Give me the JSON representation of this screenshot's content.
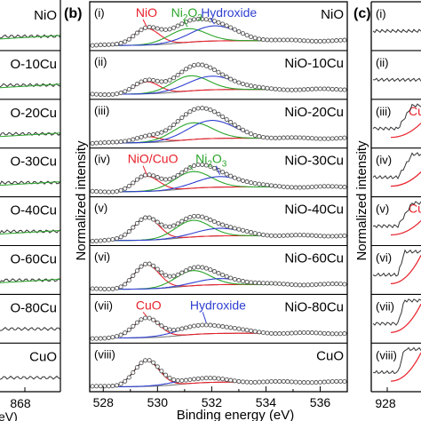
{
  "figure": {
    "left_panel": {
      "tick_labels": [
        "868"
      ],
      "xlabel_fragment": "eV)",
      "rows": [
        {
          "label": "NiO"
        },
        {
          "label": "O-10Cu"
        },
        {
          "label": "O-20Cu"
        },
        {
          "label": "O-30Cu"
        },
        {
          "label": "O-40Cu"
        },
        {
          "label": "O-60Cu"
        },
        {
          "label": "O-80Cu"
        },
        {
          "label": "CuO"
        }
      ]
    },
    "right_panel": {
      "panel_letter": "(c)",
      "ylabel": "Normalized intensity",
      "tick_labels": [
        "928"
      ],
      "rows": [
        {
          "roman": "(i)",
          "annotation": ""
        },
        {
          "roman": "(ii)",
          "annotation": ""
        },
        {
          "roman": "(iii)",
          "annotation": "Cu"
        },
        {
          "roman": "(iv)",
          "annotation": ""
        },
        {
          "roman": "(v)",
          "annotation": "Cu"
        },
        {
          "roman": "(vi)",
          "annotation": ""
        },
        {
          "roman": "(vii)",
          "annotation": ""
        },
        {
          "roman": "(viii)",
          "annotation": ""
        }
      ]
    }
  },
  "chart_data": {
    "type": "line",
    "panel_letter": "(b)",
    "xlabel": "Binding energy (eV)",
    "ylabel": "Normalized intensity",
    "xlim": [
      527.5,
      537
    ],
    "x_ticks": [
      528,
      529,
      530,
      531,
      532,
      533,
      534,
      535,
      536
    ],
    "x_tick_labels": [
      "528",
      "530",
      "532",
      "534",
      "536"
    ],
    "grid": false,
    "colors": {
      "fit_envelope": "#222222",
      "data_points": "#555555",
      "NiO": "#e8202a",
      "CuO": "#e8202a",
      "Ni2O3": "#2aa52a",
      "Hydroxide": "#2f3fd0",
      "background": "#7a7a7a"
    },
    "panels": [
      {
        "roman": "(i)",
        "sample": "NiO",
        "annotations": [
          {
            "text": "NiO",
            "color": "#e8202a"
          },
          {
            "text": "Ni",
            "sub": "2",
            "text2": "O",
            "sub2": "3",
            "color": "#2aa52a"
          },
          {
            "text": "Hydroxide",
            "color": "#2f3fd0"
          }
        ],
        "components": [
          {
            "name": "NiO",
            "center": 529.6,
            "height": 0.55,
            "fwhm": 1.1,
            "color": "#e8202a"
          },
          {
            "name": "Ni2O3",
            "center": 531.1,
            "height": 0.45,
            "fwhm": 1.6,
            "color": "#2aa52a"
          },
          {
            "name": "Hydroxide",
            "center": 532.1,
            "height": 0.5,
            "fwhm": 2.0,
            "color": "#2f3fd0"
          }
        ]
      },
      {
        "roman": "(ii)",
        "sample": "NiO-10Cu",
        "annotations": [],
        "components": [
          {
            "name": "NiO",
            "center": 529.6,
            "height": 0.4,
            "fwhm": 1.1,
            "color": "#e8202a"
          },
          {
            "name": "Ni2O3",
            "center": 531.2,
            "height": 0.5,
            "fwhm": 1.6,
            "color": "#2aa52a"
          },
          {
            "name": "Hydroxide",
            "center": 532.0,
            "height": 0.45,
            "fwhm": 2.0,
            "color": "#2f3fd0"
          }
        ]
      },
      {
        "roman": "(iii)",
        "sample": "NiO-20Cu",
        "annotations": [],
        "components": [
          {
            "name": "NiO",
            "center": 529.6,
            "height": 0.2,
            "fwhm": 1.1,
            "color": "#e8202a"
          },
          {
            "name": "Ni2O3",
            "center": 531.3,
            "height": 0.55,
            "fwhm": 1.7,
            "color": "#2aa52a"
          },
          {
            "name": "Hydroxide",
            "center": 532.0,
            "height": 0.6,
            "fwhm": 2.0,
            "color": "#2f3fd0"
          }
        ]
      },
      {
        "roman": "(iv)",
        "sample": "NiO-30Cu",
        "annotations": [
          {
            "text": "NiO/CuO",
            "color": "#e8202a"
          },
          {
            "text": "Ni",
            "sub": "2",
            "text2": "O",
            "sub2": "3",
            "color": "#2aa52a"
          }
        ],
        "components": [
          {
            "name": "NiO/CuO",
            "center": 529.6,
            "height": 0.5,
            "fwhm": 1.1,
            "color": "#e8202a"
          },
          {
            "name": "Ni2O3",
            "center": 531.3,
            "height": 0.55,
            "fwhm": 1.6,
            "color": "#2aa52a"
          },
          {
            "name": "Hydroxide",
            "center": 532.3,
            "height": 0.35,
            "fwhm": 2.0,
            "color": "#2f3fd0"
          }
        ]
      },
      {
        "roman": "(v)",
        "sample": "NiO-40Cu",
        "annotations": [],
        "components": [
          {
            "name": "NiO/CuO",
            "center": 529.6,
            "height": 0.75,
            "fwhm": 1.1,
            "color": "#e8202a"
          },
          {
            "name": "Ni2O3",
            "center": 531.3,
            "height": 0.55,
            "fwhm": 1.5,
            "color": "#2aa52a"
          },
          {
            "name": "Hydroxide",
            "center": 532.3,
            "height": 0.25,
            "fwhm": 2.0,
            "color": "#2f3fd0"
          }
        ]
      },
      {
        "roman": "(vi)",
        "sample": "NiO-60Cu",
        "annotations": [],
        "components": [
          {
            "name": "NiO/CuO",
            "center": 529.6,
            "height": 0.8,
            "fwhm": 1.1,
            "color": "#e8202a"
          },
          {
            "name": "Ni2O3",
            "center": 531.3,
            "height": 0.5,
            "fwhm": 1.5,
            "color": "#2aa52a"
          },
          {
            "name": "Hydroxide",
            "center": 532.3,
            "height": 0.2,
            "fwhm": 2.0,
            "color": "#2f3fd0"
          }
        ]
      },
      {
        "roman": "(vii)",
        "sample": "NiO-80Cu",
        "annotations": [
          {
            "text": "CuO",
            "color": "#e8202a"
          },
          {
            "text": "Hydroxide",
            "color": "#2f3fd0"
          }
        ],
        "components": [
          {
            "name": "CuO",
            "center": 529.6,
            "height": 0.65,
            "fwhm": 1.1,
            "color": "#e8202a"
          },
          {
            "name": "Hydroxide",
            "center": 531.8,
            "height": 0.3,
            "fwhm": 2.2,
            "color": "#2f3fd0"
          }
        ]
      },
      {
        "roman": "(viii)",
        "sample": "CuO",
        "annotations": [],
        "components": [
          {
            "name": "CuO",
            "center": 529.6,
            "height": 0.85,
            "fwhm": 1.1,
            "color": "#e8202a"
          },
          {
            "name": "Hydroxide",
            "center": 531.5,
            "height": 0.15,
            "fwhm": 2.0,
            "color": "#2f3fd0"
          }
        ]
      }
    ]
  }
}
